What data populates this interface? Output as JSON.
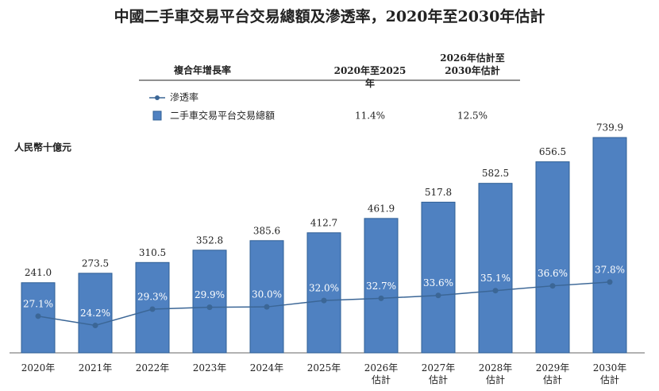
{
  "chart_data": {
    "type": "bar_line",
    "title": "中國二手車交易平台交易總額及滲透率，2020年至2030年估計",
    "y_label": "人民幣十億元",
    "categories": [
      "2020年",
      "2021年",
      "2022年",
      "2023年",
      "2024年",
      "2025年",
      "2026年\n估計",
      "2027年\n估計",
      "2028年\n估計",
      "2029年\n估計",
      "2030年\n估計"
    ],
    "ylim": [
      0,
      740
    ],
    "y2lim": [
      15.6,
      83.1
    ],
    "series": [
      {
        "name": "二手車交易平台交易總額",
        "color": "#4f81c1",
        "type": "bar",
        "values": [
          241.0,
          273.5,
          310.5,
          352.8,
          385.6,
          412.7,
          461.9,
          517.8,
          582.5,
          656.5,
          739.9
        ],
        "value_labels": [
          "241.0",
          "273.5",
          "310.5",
          "352.8",
          "385.6",
          "412.7",
          "461.9",
          "517.8",
          "582.5",
          "656.5",
          "739.9"
        ]
      },
      {
        "name": "滲透率",
        "color": "#3b6696",
        "type": "line",
        "axis": "y2",
        "values": [
          27.1,
          24.2,
          29.3,
          29.9,
          30.0,
          32.0,
          32.7,
          33.6,
          35.1,
          36.6,
          37.8
        ],
        "value_labels": [
          "27.1%",
          "24.2%",
          "29.3%",
          "29.9%",
          "30.0%",
          "32.0%",
          "32.7%",
          "33.6%",
          "35.1%",
          "36.6%",
          "37.8%"
        ]
      }
    ],
    "cagr_table": {
      "header": "複合年增長率",
      "columns": [
        "2020年至2025年",
        "2026年估計至\n2030年估計"
      ],
      "values": [
        "11.4%",
        "12.5%"
      ]
    }
  }
}
